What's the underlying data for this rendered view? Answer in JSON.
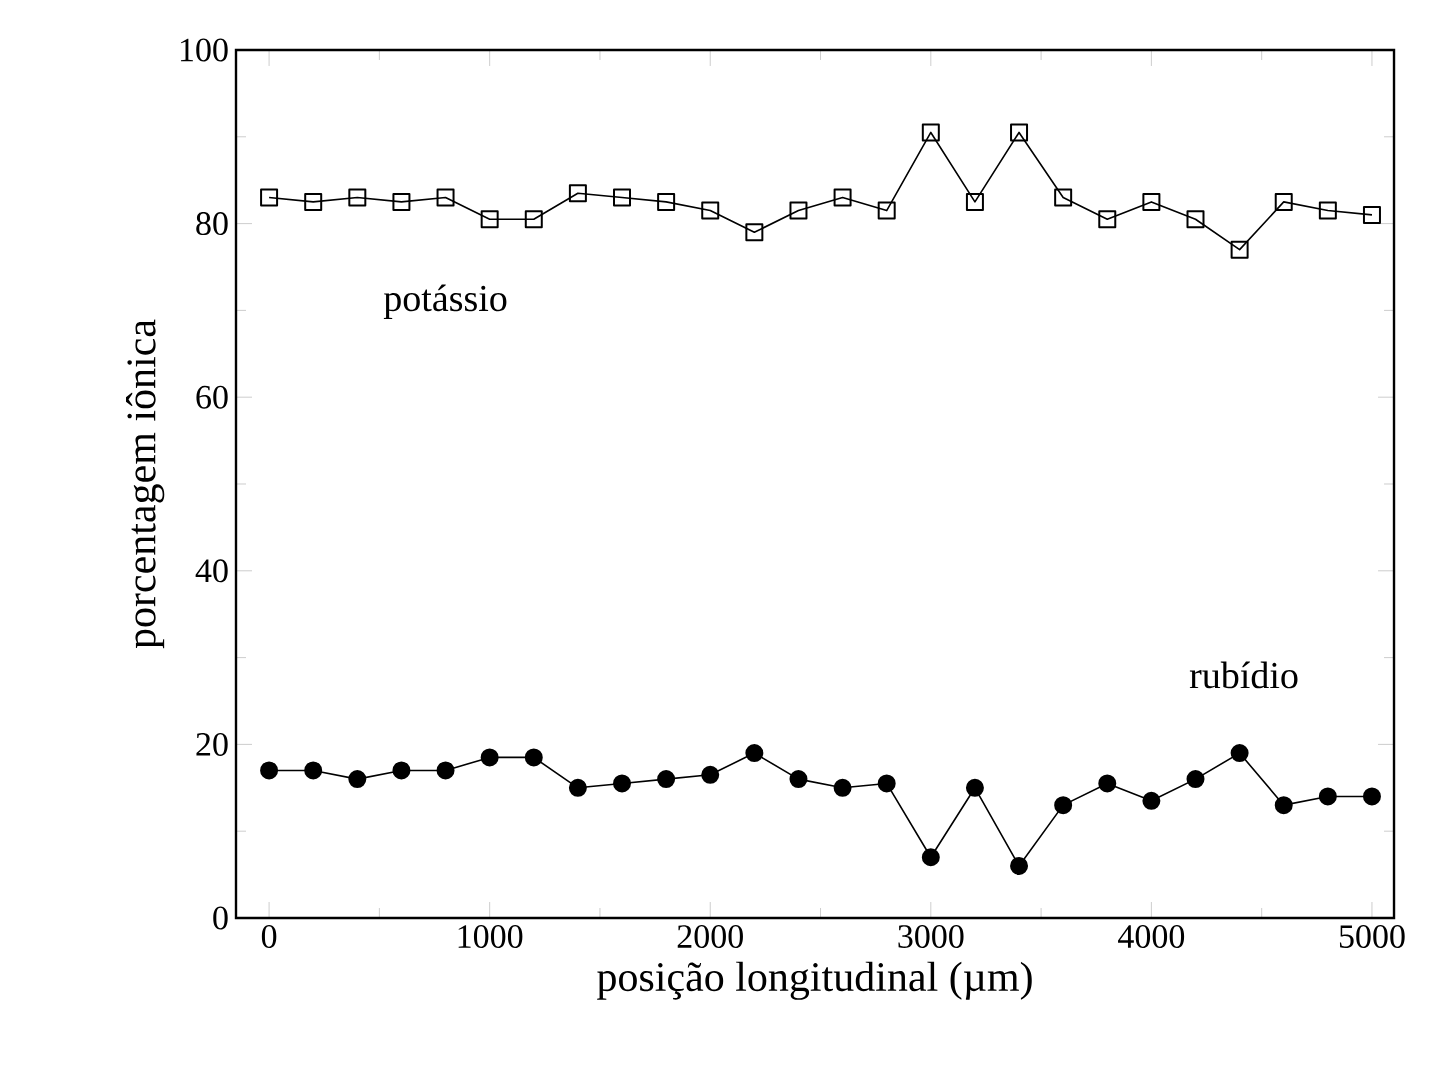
{
  "chart_data": {
    "type": "line",
    "xlabel": "posição longitudinal (µm)",
    "ylabel": "porcentagem iônica",
    "x": [
      0,
      200,
      400,
      600,
      800,
      1000,
      1200,
      1400,
      1600,
      1800,
      2000,
      2200,
      2400,
      2600,
      2800,
      3000,
      3200,
      3400,
      3600,
      3800,
      4000,
      4200,
      4400,
      4600,
      4800,
      5000
    ],
    "xlim": [
      -150,
      5100
    ],
    "ylim": [
      0,
      100
    ],
    "xticks": [
      0,
      1000,
      2000,
      3000,
      4000,
      5000
    ],
    "yticks": [
      0,
      20,
      40,
      60,
      80,
      100
    ],
    "grid": false,
    "line_style": "solid",
    "series": [
      {
        "name": "potássio",
        "color": "#000000",
        "marker": "square",
        "values": [
          83,
          82.5,
          83,
          82.5,
          83,
          80.5,
          80.5,
          83.5,
          83,
          82.5,
          81.5,
          79,
          81.5,
          83,
          81.5,
          90.5,
          82.5,
          90.5,
          83,
          80.5,
          82.5,
          80.5,
          77,
          82.5,
          81.5,
          81
        ]
      },
      {
        "name": "rubídio",
        "color": "#000000",
        "marker": "circle",
        "values": [
          17,
          17,
          16,
          17,
          17,
          18.5,
          18.5,
          15,
          15.5,
          16,
          16.5,
          19,
          16,
          15,
          15.5,
          7,
          15,
          6,
          13,
          15.5,
          13.5,
          16,
          19,
          13,
          14,
          14
        ]
      }
    ]
  }
}
